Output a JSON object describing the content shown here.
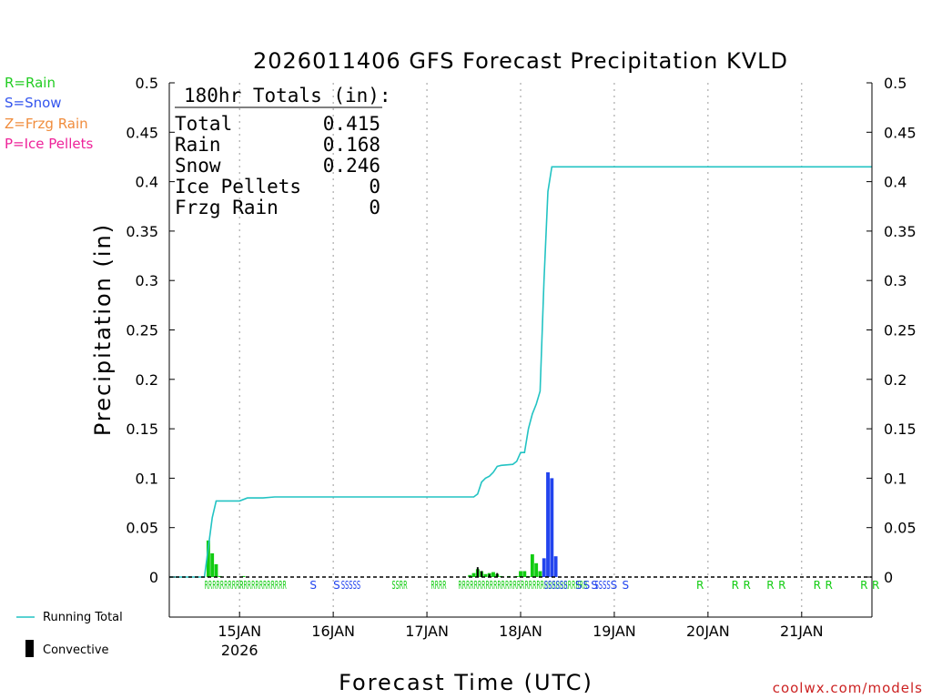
{
  "chart_data": {
    "type": "bar",
    "title": "2026011406 GFS Forecast Precipitation KVLD",
    "xlabel": "Forecast Time (UTC)",
    "ylabel": "Precipitation (in)",
    "ylim": [
      0,
      0.5
    ],
    "y_ticks": [
      "0",
      "0.05",
      "0.1",
      "0.15",
      "0.2",
      "0.25",
      "0.3",
      "0.35",
      "0.4",
      "0.45",
      "0.5"
    ],
    "xlim_hours": [
      0,
      180
    ],
    "x_ticks": [
      {
        "hour": 18,
        "label": "15JAN",
        "sub": "2026"
      },
      {
        "hour": 42,
        "label": "16JAN",
        "sub": ""
      },
      {
        "hour": 66,
        "label": "17JAN",
        "sub": ""
      },
      {
        "hour": 90,
        "label": "18JAN",
        "sub": ""
      },
      {
        "hour": 114,
        "label": "19JAN",
        "sub": ""
      },
      {
        "hour": 138,
        "label": "20JAN",
        "sub": ""
      },
      {
        "hour": 162,
        "label": "21JAN",
        "sub": ""
      }
    ],
    "grid": "vertical-dotted",
    "bars": [
      {
        "hour": 10,
        "value": 0.037,
        "type": "rain"
      },
      {
        "hour": 11,
        "value": 0.024,
        "type": "rain"
      },
      {
        "hour": 12,
        "value": 0.013,
        "type": "rain"
      },
      {
        "hour": 13,
        "value": 0.001,
        "type": "rain"
      },
      {
        "hour": 19,
        "value": 0.001,
        "type": "rain"
      },
      {
        "hour": 77,
        "value": 0.002,
        "type": "rain"
      },
      {
        "hour": 78,
        "value": 0.004,
        "type": "rain"
      },
      {
        "hour": 79,
        "value": 0.008,
        "type": "rain"
      },
      {
        "hour": 80,
        "value": 0.006,
        "type": "rain"
      },
      {
        "hour": 81,
        "value": 0.003,
        "type": "rain"
      },
      {
        "hour": 82,
        "value": 0.004,
        "type": "rain"
      },
      {
        "hour": 83,
        "value": 0.005,
        "type": "rain"
      },
      {
        "hour": 84,
        "value": 0.003,
        "type": "rain"
      },
      {
        "hour": 85,
        "value": 0.001,
        "type": "rain"
      },
      {
        "hour": 87,
        "value": 0.001,
        "type": "rain"
      },
      {
        "hour": 89,
        "value": 0.001,
        "type": "rain"
      },
      {
        "hour": 90,
        "value": 0.006,
        "type": "rain"
      },
      {
        "hour": 91,
        "value": 0.006,
        "type": "rain"
      },
      {
        "hour": 92,
        "value": 0.001,
        "type": "rain"
      },
      {
        "hour": 93,
        "value": 0.023,
        "type": "rain"
      },
      {
        "hour": 94,
        "value": 0.014,
        "type": "rain"
      },
      {
        "hour": 95,
        "value": 0.006,
        "type": "rain"
      },
      {
        "hour": 96,
        "value": 0.019,
        "type": "snow"
      },
      {
        "hour": 97,
        "value": 0.106,
        "type": "snow"
      },
      {
        "hour": 98,
        "value": 0.1,
        "type": "snow"
      },
      {
        "hour": 99,
        "value": 0.021,
        "type": "snow"
      }
    ],
    "convective_bars": [
      {
        "hour": 79,
        "value": 0.01
      },
      {
        "hour": 80,
        "value": 0.006
      },
      {
        "hour": 82,
        "value": 0.003
      },
      {
        "hour": 84,
        "value": 0.004
      }
    ],
    "running_total": [
      [
        0,
        0
      ],
      [
        9,
        0
      ],
      [
        10,
        0.03
      ],
      [
        11,
        0.06
      ],
      [
        12,
        0.077
      ],
      [
        18,
        0.077
      ],
      [
        20,
        0.08
      ],
      [
        24,
        0.08
      ],
      [
        27,
        0.081
      ],
      [
        78,
        0.081
      ],
      [
        79,
        0.084
      ],
      [
        80,
        0.096
      ],
      [
        81,
        0.1
      ],
      [
        82,
        0.102
      ],
      [
        83,
        0.106
      ],
      [
        84,
        0.112
      ],
      [
        85,
        0.113
      ],
      [
        88,
        0.114
      ],
      [
        89,
        0.117
      ],
      [
        90,
        0.126
      ],
      [
        91,
        0.126
      ],
      [
        92,
        0.15
      ],
      [
        93,
        0.165
      ],
      [
        94,
        0.175
      ],
      [
        95,
        0.188
      ],
      [
        96,
        0.3
      ],
      [
        97,
        0.39
      ],
      [
        98,
        0.415
      ],
      [
        180,
        0.415
      ]
    ],
    "ptype_strip": [
      {
        "hour": 9,
        "text": "RRRRRRRRRR",
        "type": "rain"
      },
      {
        "hour": 18,
        "text": "RRRRRRRRRRRR",
        "type": "rain"
      },
      {
        "hour": 36,
        "text": "S",
        "type": "snow"
      },
      {
        "hour": 42,
        "text": "S",
        "type": "snow"
      },
      {
        "hour": 44,
        "text": "SSSSS",
        "type": "snow"
      },
      {
        "hour": 57,
        "text": "SSRR",
        "type": "rain"
      },
      {
        "hour": 67,
        "text": "RRRR",
        "type": "rain"
      },
      {
        "hour": 74,
        "text": "RRRRRRRRRRRRRRRRRRRRRRRRRRRRRRRRR",
        "type": "rain"
      },
      {
        "hour": 96,
        "text": "SSSSSS",
        "type": "snow"
      },
      {
        "hour": 104,
        "text": "S",
        "type": "snow"
      },
      {
        "hour": 106,
        "text": "S",
        "type": "snow"
      },
      {
        "hour": 108,
        "text": "S",
        "type": "snow"
      },
      {
        "hour": 109,
        "text": "SSSS",
        "type": "snow"
      },
      {
        "hour": 113,
        "text": "S",
        "type": "snow"
      },
      {
        "hour": 116,
        "text": "S",
        "type": "snow"
      },
      {
        "hour": 135,
        "text": "R",
        "type": "rain"
      },
      {
        "hour": 144,
        "text": "R",
        "type": "rain"
      },
      {
        "hour": 147,
        "text": "R",
        "type": "rain"
      },
      {
        "hour": 153,
        "text": "R",
        "type": "rain"
      },
      {
        "hour": 156,
        "text": "R",
        "type": "rain"
      },
      {
        "hour": 165,
        "text": "R",
        "type": "rain"
      },
      {
        "hour": 168,
        "text": "R",
        "type": "rain"
      },
      {
        "hour": 177,
        "text": "R",
        "type": "rain"
      },
      {
        "hour": 180,
        "text": "R",
        "type": "rain"
      }
    ],
    "totals_box": {
      "heading": "180hr Totals (in):",
      "rows": [
        {
          "label": "Total",
          "value": "0.415"
        },
        {
          "label": "Rain",
          "value": "0.168"
        },
        {
          "label": "Snow",
          "value": "0.246"
        },
        {
          "label": "Ice Pellets",
          "value": "0"
        },
        {
          "label": "Frzg Rain",
          "value": "0"
        }
      ]
    },
    "type_legend": [
      {
        "text": "R=Rain",
        "color": "#22cc22"
      },
      {
        "text": "S=Snow",
        "color": "#3355ee"
      },
      {
        "text": "Z=Frzg Rain",
        "color": "#f08c3c"
      },
      {
        "text": "P=Ice Pellets",
        "color": "#ee2299"
      }
    ],
    "line_legend": {
      "running_total": "Running Total",
      "convective": "Convective"
    },
    "credit": "coolwx.com/models"
  },
  "colors": {
    "rain": "#11cc11",
    "snow": "#2244ee",
    "convective": "#000000",
    "running_total": "#22c3c3",
    "credit": "#cc2222"
  }
}
